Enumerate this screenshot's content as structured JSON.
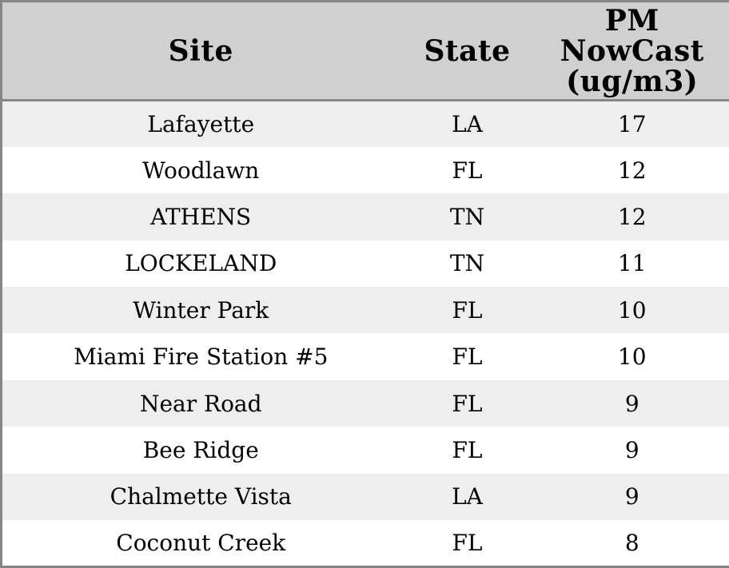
{
  "chart_data": {
    "type": "table",
    "title": "",
    "columns": [
      "Site",
      "State",
      "PM NowCast (ug/m3)"
    ],
    "rows": [
      [
        "Lafayette",
        "LA",
        "17"
      ],
      [
        "Woodlawn",
        "FL",
        "12"
      ],
      [
        "ATHENS",
        "TN",
        "12"
      ],
      [
        "LOCKELAND",
        "TN",
        "11"
      ],
      [
        "Winter Park",
        "FL",
        "10"
      ],
      [
        "Miami Fire Station #5",
        "FL",
        "10"
      ],
      [
        "Near Road",
        "FL",
        "9"
      ],
      [
        "Bee Ridge",
        "FL",
        "9"
      ],
      [
        "Chalmette Vista",
        "LA",
        "9"
      ],
      [
        "Coconut Creek",
        "FL",
        "8"
      ]
    ]
  },
  "colors": {
    "header_bg": "#d0d0d0",
    "border": "#868686",
    "row_alt_bg": "#eeeeee",
    "row_bg": "#ffffff",
    "text": "#000000"
  }
}
